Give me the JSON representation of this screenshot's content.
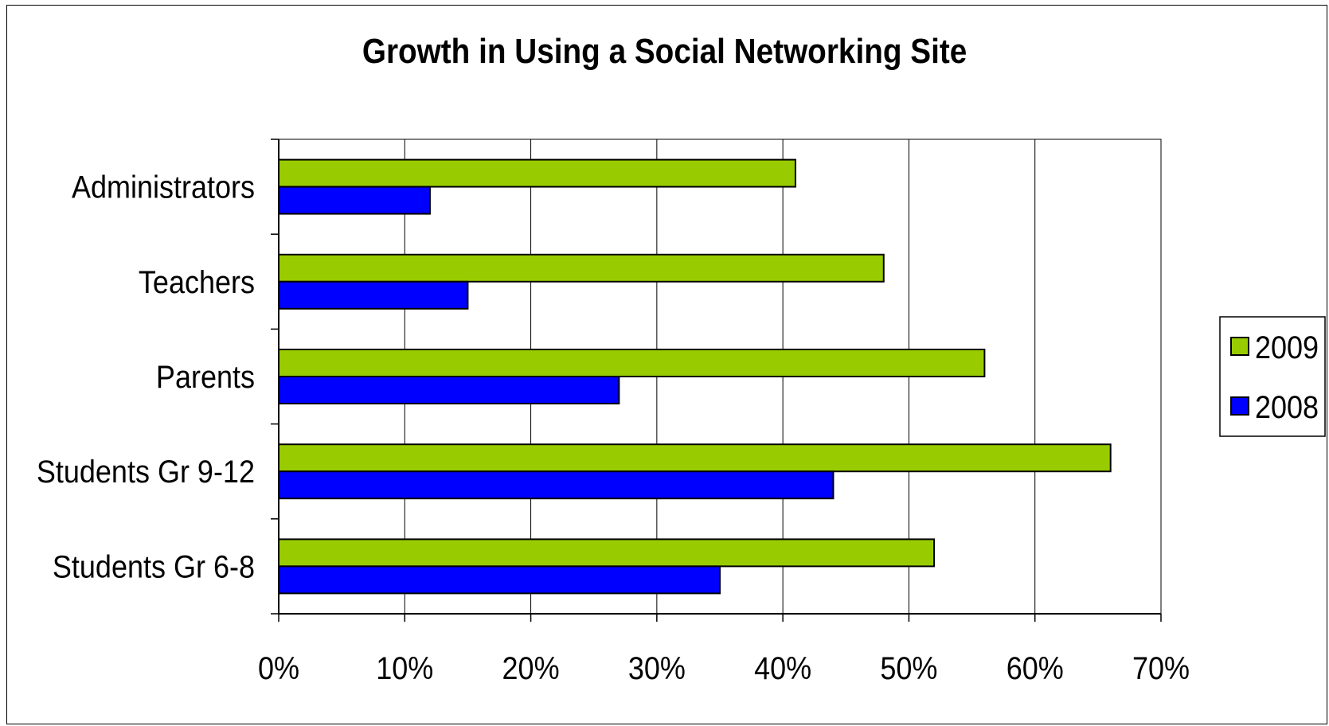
{
  "chart_data": {
    "type": "bar",
    "orientation": "horizontal",
    "title": "Growth in Using a Social Networking Site",
    "categories": [
      "Administrators",
      "Teachers",
      "Parents",
      "Students Gr 9-12",
      "Students Gr 6-8"
    ],
    "series": [
      {
        "name": "2009",
        "color": "#99cc00",
        "values": [
          41,
          48,
          56,
          66,
          52
        ]
      },
      {
        "name": "2008",
        "color": "#0000ff",
        "values": [
          12,
          15,
          27,
          44,
          35
        ]
      }
    ],
    "x_ticks": [
      "0%",
      "10%",
      "20%",
      "30%",
      "40%",
      "50%",
      "60%",
      "70%"
    ],
    "xlim": [
      0,
      70
    ],
    "x_unit": "%",
    "grid": "vertical major gridlines",
    "legend": {
      "position": "right",
      "entries": [
        "2009",
        "2008"
      ]
    }
  }
}
